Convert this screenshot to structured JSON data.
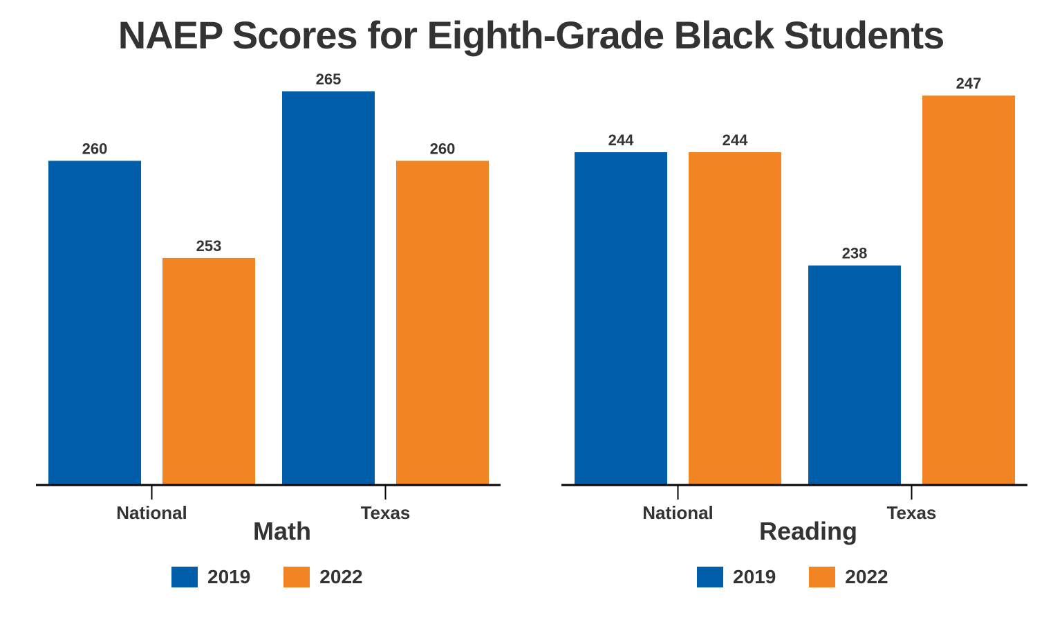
{
  "title": "NAEP Scores for Eighth-Grade Black Students",
  "colors": {
    "2019": "#005eab",
    "2022": "#f28424",
    "text": "#333333",
    "axis": "#000000"
  },
  "chart_data": [
    {
      "type": "bar",
      "subject": "Math",
      "categories": [
        "National",
        "Texas"
      ],
      "series": [
        {
          "name": "2019",
          "values": [
            260,
            265
          ]
        },
        {
          "name": "2022",
          "values": [
            253,
            260
          ]
        }
      ],
      "xlabel": "Math",
      "ylabel": "",
      "ylim": [
        236.7,
        266.6
      ],
      "grid": false,
      "legend": "bottom"
    },
    {
      "type": "bar",
      "subject": "Reading",
      "categories": [
        "National",
        "Texas"
      ],
      "series": [
        {
          "name": "2019",
          "values": [
            244,
            238
          ]
        },
        {
          "name": "2022",
          "values": [
            244,
            247
          ]
        }
      ],
      "xlabel": "Reading",
      "ylabel": "",
      "ylim": [
        226.4,
        248.4
      ],
      "grid": false,
      "legend": "bottom"
    }
  ]
}
